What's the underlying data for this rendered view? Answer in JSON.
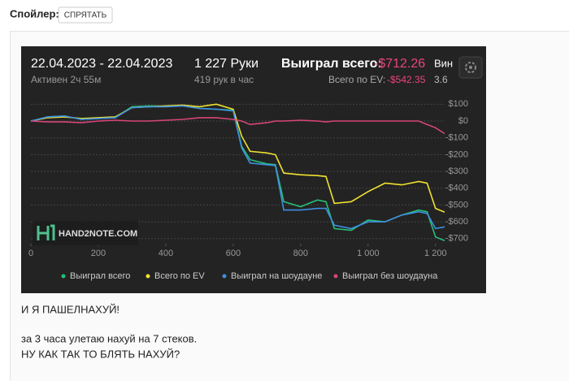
{
  "spoiler": {
    "label": "Спойлер:",
    "button": "СПРЯТАТЬ"
  },
  "header": {
    "date_range": "22.04.2023 - 22.04.2023",
    "active": "Активен 2ч 55м",
    "hands": "1 227 Руки",
    "rate": "419 рук в час",
    "won_label": "Выиграл всего:",
    "won_value": "-$712.26",
    "cut_label": "Вин",
    "ev_label": "Всего по EV:",
    "ev_value": "-$542.35",
    "cut_value": "3.6",
    "watermark": "HAND2NOTE.COM"
  },
  "chart_data": {
    "type": "line",
    "x": [
      0,
      50,
      100,
      150,
      200,
      250,
      300,
      350,
      400,
      450,
      500,
      550,
      600,
      625,
      650,
      700,
      725,
      750,
      800,
      850,
      875,
      900,
      950,
      1000,
      1050,
      1100,
      1150,
      1175,
      1200,
      1227
    ],
    "series": [
      {
        "name": "Выиграл всего",
        "color": "#27c07a",
        "values": [
          0,
          25,
          30,
          10,
          15,
          20,
          85,
          90,
          88,
          92,
          75,
          70,
          65,
          -150,
          -230,
          -255,
          -260,
          -480,
          -510,
          -470,
          -480,
          -640,
          -650,
          -590,
          -600,
          -560,
          -530,
          -540,
          -690,
          -712
        ]
      },
      {
        "name": "Всего по EV",
        "color": "#f0e130",
        "values": [
          0,
          20,
          25,
          15,
          20,
          25,
          80,
          85,
          90,
          95,
          85,
          100,
          70,
          -90,
          -180,
          -190,
          -200,
          -310,
          -320,
          -325,
          -330,
          -490,
          -480,
          -420,
          -370,
          -380,
          -360,
          -370,
          -520,
          -542
        ]
      },
      {
        "name": "Выиграл на шоудауне",
        "color": "#3d8fe0",
        "values": [
          0,
          25,
          30,
          10,
          15,
          20,
          80,
          85,
          85,
          90,
          75,
          70,
          60,
          -160,
          -250,
          -260,
          -265,
          -530,
          -530,
          -520,
          -520,
          -620,
          -640,
          -600,
          -600,
          -560,
          -540,
          -550,
          -640,
          -630
        ]
      },
      {
        "name": "Выиграл без шоудауна",
        "color": "#d6457a",
        "values": [
          0,
          -5,
          -5,
          -10,
          0,
          5,
          0,
          0,
          5,
          10,
          20,
          20,
          10,
          0,
          -20,
          -10,
          0,
          0,
          5,
          0,
          -5,
          0,
          0,
          0,
          0,
          0,
          0,
          -20,
          -40,
          -75
        ]
      }
    ],
    "xlim": [
      0,
      1227
    ],
    "xticks": [
      0,
      200,
      400,
      600,
      800,
      {
        "value": 1000,
        "label": "1 000"
      },
      {
        "value": 1200,
        "label": "1 200"
      }
    ],
    "ylim": [
      -730,
      150
    ],
    "yticks": [
      {
        "value": 100,
        "label": "$100"
      },
      {
        "value": 0,
        "label": "$0"
      },
      {
        "value": -100,
        "label": "-$100"
      },
      {
        "value": -200,
        "label": "-$200"
      },
      {
        "value": -300,
        "label": "-$300"
      },
      {
        "value": -400,
        "label": "-$400"
      },
      {
        "value": -500,
        "label": "-$500"
      },
      {
        "value": -600,
        "label": "-$600"
      },
      {
        "value": -700,
        "label": "-$700"
      }
    ],
    "grid": true
  },
  "post": {
    "lines": [
      "И Я ПАШЕЛНАХУЙ!",
      "за 3 часа улетаю нахуй на 7 стеков.",
      "НУ КАК ТАК ТО БЛЯТЬ НАХУЙ?"
    ]
  }
}
